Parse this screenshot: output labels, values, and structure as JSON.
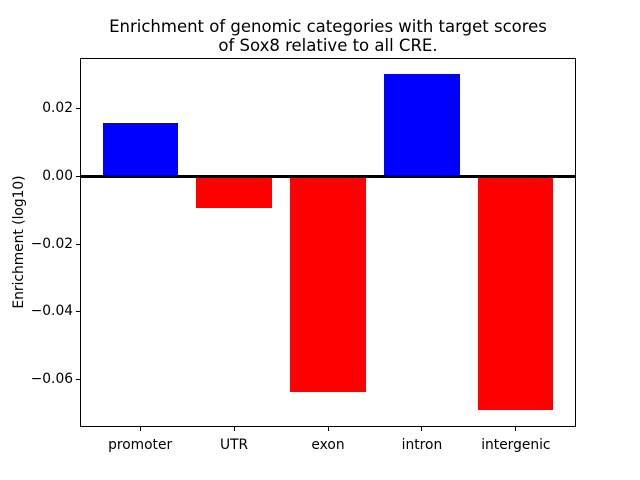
{
  "chart_data": {
    "type": "bar",
    "title": "Enrichment of genomic categories with target scores\nof Sox8 relative to all CRE.",
    "title_lines": [
      "Enrichment of genomic categories with target scores",
      "of Sox8 relative to all CRE."
    ],
    "ylabel": "Enrichment (log10)",
    "xlabel": "",
    "categories": [
      "promoter",
      "UTR",
      "exon",
      "intron",
      "intergenic"
    ],
    "values": [
      0.0157,
      -0.0094,
      -0.0637,
      0.0301,
      -0.069
    ],
    "bar_colors": [
      "#0000ff",
      "#ff0000",
      "#ff0000",
      "#0000ff",
      "#ff0000"
    ],
    "positive_color": "#0000ff",
    "negative_color": "#ff0000",
    "bar_width": 0.8,
    "yticks": [
      0.02,
      0,
      -0.02,
      -0.04,
      -0.06
    ],
    "ytick_labels": [
      "0.02",
      "0.00",
      "−0.02",
      "−0.04",
      "−0.06"
    ],
    "ylim": [
      -0.074,
      0.035
    ],
    "xlim": [
      -0.64,
      4.64
    ],
    "zero_line": true,
    "grid": false,
    "legend": null,
    "axis_color": "#000000",
    "background_color": "#ffffff"
  }
}
